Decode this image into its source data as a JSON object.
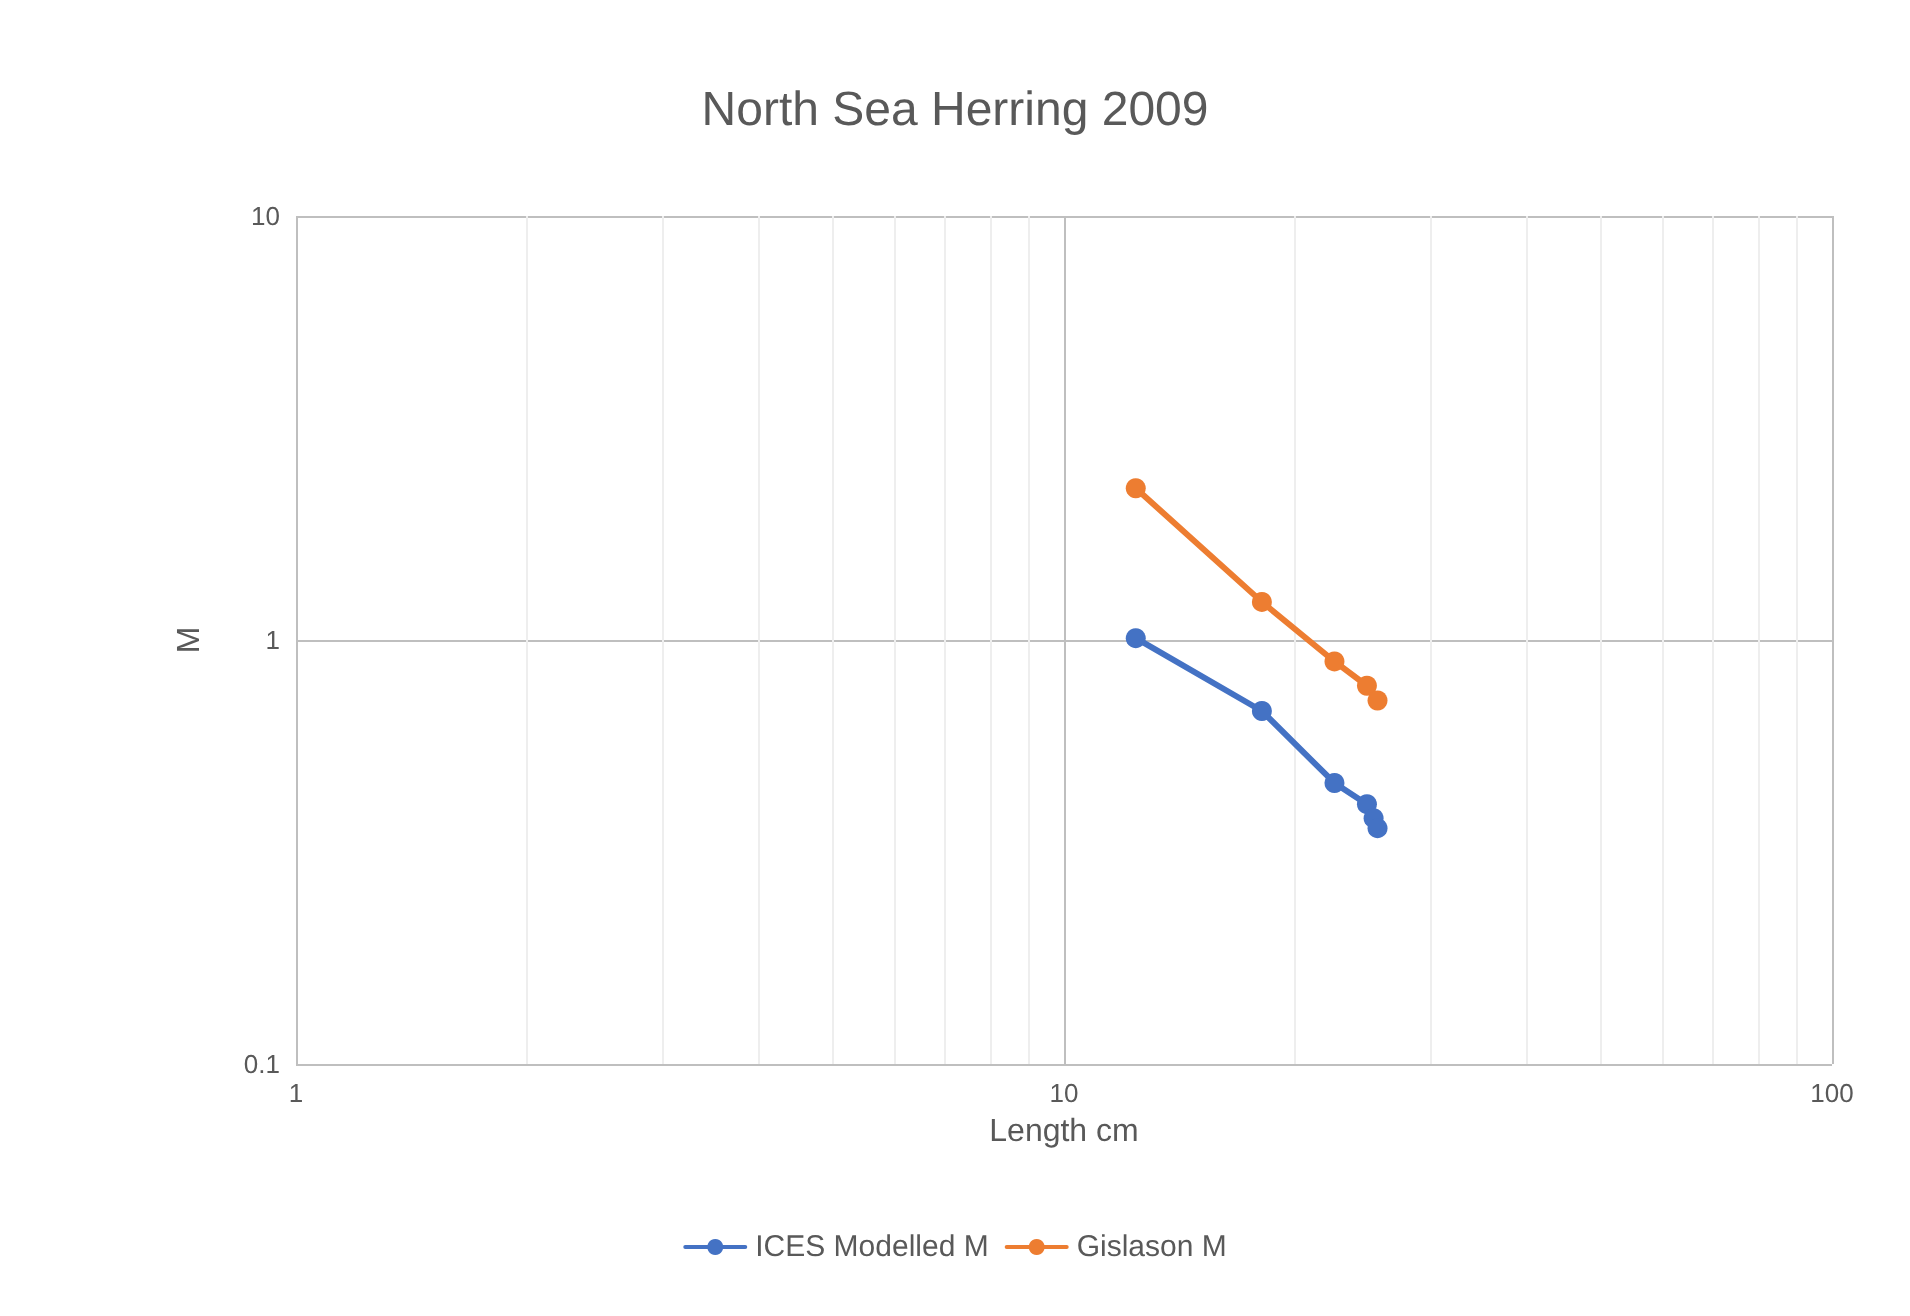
{
  "chart_data": {
    "type": "line",
    "title": "North Sea Herring 2009",
    "xlabel": "Length cm",
    "ylabel": "M",
    "series": [
      {
        "name": "ICES Modelled M",
        "color": "#4472c4",
        "x": [
          12.4,
          18.1,
          22.5,
          24.8,
          25.3,
          25.6
        ],
        "values": [
          1.01,
          0.68,
          0.46,
          0.41,
          0.38,
          0.36
        ]
      },
      {
        "name": "Gislason M",
        "color": "#ed7d31",
        "x": [
          12.4,
          18.1,
          22.5,
          24.8,
          25.6
        ],
        "values": [
          2.28,
          1.23,
          0.89,
          0.78,
          0.72
        ]
      }
    ],
    "log": "xy",
    "xlim": [
      1,
      100
    ],
    "xticks": [
      1,
      10,
      100
    ],
    "ylim": [
      0.1,
      10
    ],
    "yticks": [
      0.1,
      1,
      10
    ],
    "grid": true,
    "legend": "bottom",
    "marker": "circle",
    "line_style": "solid"
  }
}
